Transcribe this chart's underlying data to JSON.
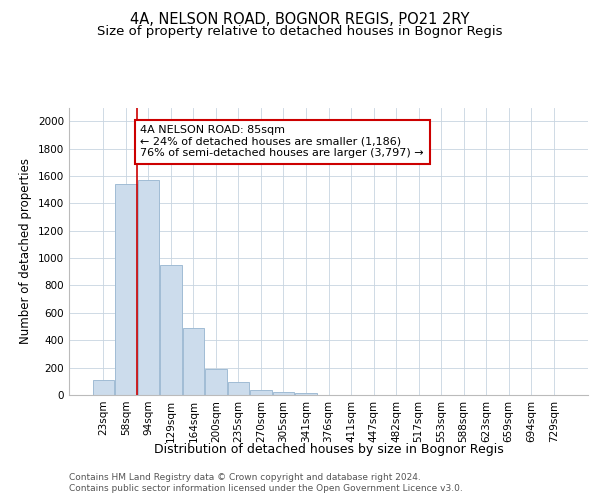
{
  "title_line1": "4A, NELSON ROAD, BOGNOR REGIS, PO21 2RY",
  "title_line2": "Size of property relative to detached houses in Bognor Regis",
  "xlabel": "Distribution of detached houses by size in Bognor Regis",
  "ylabel": "Number of detached properties",
  "categories": [
    "23sqm",
    "58sqm",
    "94sqm",
    "129sqm",
    "164sqm",
    "200sqm",
    "235sqm",
    "270sqm",
    "305sqm",
    "341sqm",
    "376sqm",
    "411sqm",
    "447sqm",
    "482sqm",
    "517sqm",
    "553sqm",
    "588sqm",
    "623sqm",
    "659sqm",
    "694sqm",
    "729sqm"
  ],
  "values": [
    110,
    1540,
    1570,
    950,
    490,
    190,
    95,
    35,
    25,
    15,
    0,
    0,
    0,
    0,
    0,
    0,
    0,
    0,
    0,
    0,
    0
  ],
  "bar_color": "#ccdcec",
  "bar_edge_color": "#a0bcd4",
  "grid_color": "#c8d4e0",
  "background_color": "#ffffff",
  "red_line_color": "#cc0000",
  "red_line_x": 1.5,
  "annotation_text_line1": "4A NELSON ROAD: 85sqm",
  "annotation_text_line2": "← 24% of detached houses are smaller (1,186)",
  "annotation_text_line3": "76% of semi-detached houses are larger (3,797) →",
  "annotation_box_color": "#ffffff",
  "annotation_box_edge_color": "#cc0000",
  "ylim": [
    0,
    2100
  ],
  "yticks": [
    0,
    200,
    400,
    600,
    800,
    1000,
    1200,
    1400,
    1600,
    1800,
    2000
  ],
  "footer_line1": "Contains HM Land Registry data © Crown copyright and database right 2024.",
  "footer_line2": "Contains public sector information licensed under the Open Government Licence v3.0.",
  "title_fontsize": 10.5,
  "subtitle_fontsize": 9.5,
  "xlabel_fontsize": 9,
  "ylabel_fontsize": 8.5,
  "tick_fontsize": 7.5,
  "annotation_fontsize": 8,
  "footer_fontsize": 6.5
}
